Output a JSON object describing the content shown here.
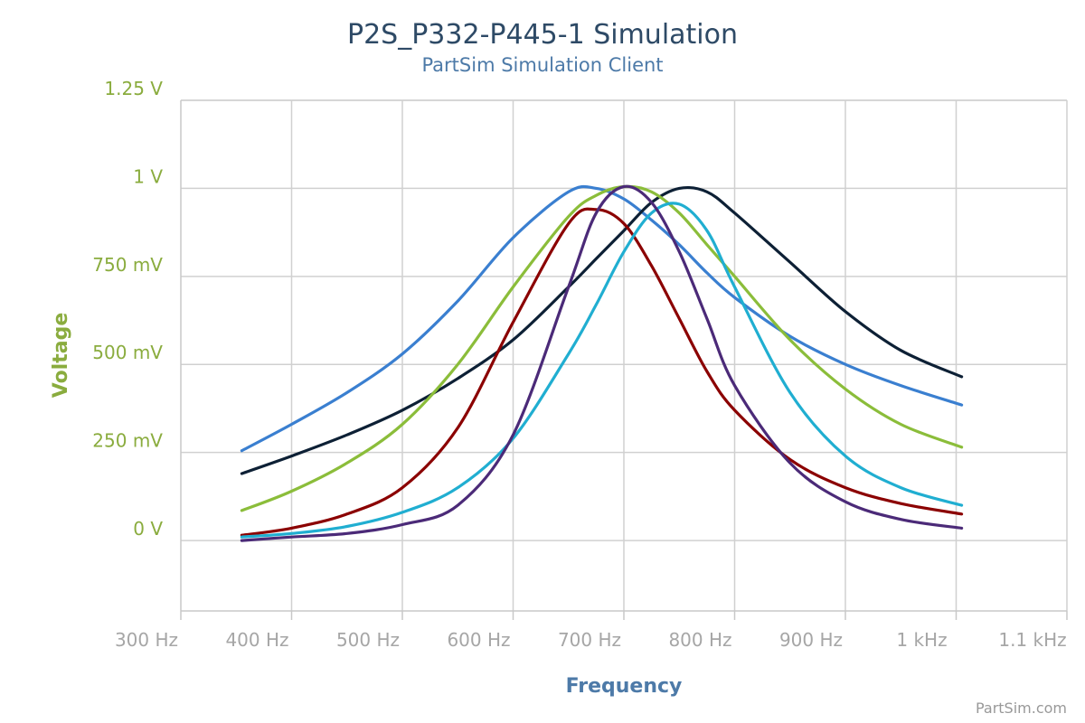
{
  "chart_data": {
    "type": "line",
    "title": "P2S_P332-P445-1 Simulation",
    "subtitle": "PartSim Simulation Client",
    "xlabel": "Frequency",
    "ylabel": "Voltage",
    "credit": "PartSim.com",
    "xlim": [
      300,
      1100
    ],
    "ylim": [
      -0.2,
      1.25
    ],
    "x_ticks": [
      {
        "value": 300,
        "label": "300 Hz"
      },
      {
        "value": 400,
        "label": "400 Hz"
      },
      {
        "value": 500,
        "label": "500 Hz"
      },
      {
        "value": 600,
        "label": "600 Hz"
      },
      {
        "value": 700,
        "label": "700 Hz"
      },
      {
        "value": 800,
        "label": "800 Hz"
      },
      {
        "value": 900,
        "label": "900 Hz"
      },
      {
        "value": 1000,
        "label": "1 kHz"
      },
      {
        "value": 1100,
        "label": "1.1 kHz"
      }
    ],
    "y_ticks": [
      {
        "value": 0,
        "label": "0 V"
      },
      {
        "value": 0.25,
        "label": "250 mV"
      },
      {
        "value": 0.5,
        "label": "500 mV"
      },
      {
        "value": 0.75,
        "label": "750 mV"
      },
      {
        "value": 1.0,
        "label": "1 V"
      },
      {
        "value": 1.25,
        "label": "1.25 V"
      }
    ],
    "grid": true,
    "legend": "none",
    "x": [
      355,
      400,
      450,
      500,
      550,
      600,
      650,
      675,
      700,
      725,
      750,
      775,
      800,
      850,
      900,
      950,
      1005
    ],
    "series": [
      {
        "color": "#3a7fd0",
        "values": [
          0.255,
          0.33,
          0.42,
          0.53,
          0.68,
          0.86,
          0.99,
          1.0,
          0.97,
          0.91,
          0.84,
          0.76,
          0.69,
          0.58,
          0.5,
          0.44,
          0.385
        ]
      },
      {
        "color": "#0d2035",
        "values": [
          0.19,
          0.24,
          0.3,
          0.37,
          0.46,
          0.57,
          0.72,
          0.8,
          0.88,
          0.96,
          1.0,
          0.99,
          0.93,
          0.79,
          0.65,
          0.54,
          0.465
        ]
      },
      {
        "color": "#8bbd3a",
        "values": [
          0.085,
          0.14,
          0.22,
          0.33,
          0.5,
          0.72,
          0.92,
          0.98,
          1.005,
          0.99,
          0.93,
          0.84,
          0.75,
          0.57,
          0.43,
          0.33,
          0.265
        ]
      },
      {
        "color": "#8b0000",
        "values": [
          0.015,
          0.035,
          0.075,
          0.15,
          0.32,
          0.62,
          0.9,
          0.94,
          0.9,
          0.78,
          0.63,
          0.48,
          0.37,
          0.23,
          0.15,
          0.105,
          0.075
        ]
      },
      {
        "color": "#20aed1",
        "values": [
          0.01,
          0.02,
          0.04,
          0.08,
          0.15,
          0.29,
          0.53,
          0.67,
          0.82,
          0.93,
          0.955,
          0.88,
          0.72,
          0.42,
          0.24,
          0.15,
          0.1
        ]
      },
      {
        "color": "#4b2a78",
        "values": [
          0.0,
          0.01,
          0.02,
          0.045,
          0.1,
          0.3,
          0.72,
          0.93,
          1.005,
          0.96,
          0.82,
          0.63,
          0.44,
          0.22,
          0.11,
          0.06,
          0.035
        ]
      }
    ]
  }
}
